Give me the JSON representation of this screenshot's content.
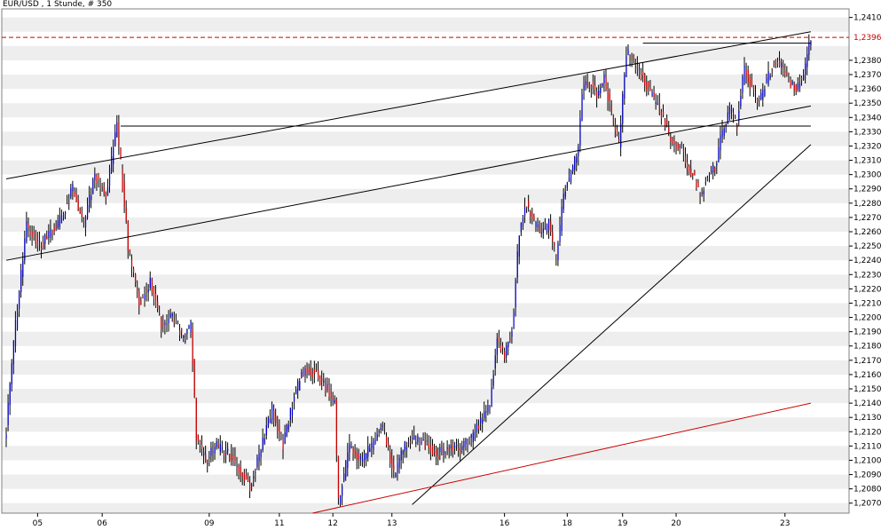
{
  "chart_data": {
    "type": "candlestick",
    "title": "EUR/USD , 1 Stunde, # 350",
    "x_tick_labels": [
      "05",
      "06",
      "09",
      "11",
      "12",
      "13",
      "16",
      "18",
      "19",
      "20",
      "23"
    ],
    "y_tick_labels": [
      "1,2410",
      "1,2380",
      "1,2370",
      "1,2360",
      "1,2350",
      "1,2340",
      "1,2330",
      "1,2320",
      "1,2310",
      "1,2300",
      "1,2290",
      "1,2280",
      "1,2270",
      "1,2260",
      "1,2250",
      "1,2240",
      "1,2230",
      "1,2220",
      "1,2210",
      "1,2200",
      "1,2190",
      "1,2180",
      "1,2170",
      "1,2160",
      "1,2150",
      "1,2140",
      "1,2130",
      "1,2120",
      "1,2110",
      "1,2100",
      "1,2090",
      "1,2080",
      "1,2070"
    ],
    "last_value_label": "1,2396",
    "ylim": [
      1.2063,
      1.2416
    ],
    "grid": "alternating horizontal bands",
    "colors": {
      "up": "#0000cc",
      "down": "#cc0000",
      "trendline": "#000000",
      "support": "#cc0000",
      "band": "#eeeeee"
    },
    "price_path": [
      [
        0,
        1.2122
      ],
      [
        5,
        1.2195
      ],
      [
        11,
        1.2265
      ],
      [
        18,
        1.225
      ],
      [
        24,
        1.2258
      ],
      [
        30,
        1.227
      ],
      [
        36,
        1.229
      ],
      [
        42,
        1.2265
      ],
      [
        48,
        1.23
      ],
      [
        54,
        1.2285
      ],
      [
        60,
        1.2335
      ],
      [
        66,
        1.225
      ],
      [
        72,
        1.221
      ],
      [
        78,
        1.2225
      ],
      [
        84,
        1.2195
      ],
      [
        90,
        1.22
      ],
      [
        96,
        1.2185
      ],
      [
        100,
        1.2195
      ],
      [
        103,
        1.2115
      ],
      [
        108,
        1.21
      ],
      [
        114,
        1.211
      ],
      [
        120,
        1.2105
      ],
      [
        126,
        1.2095
      ],
      [
        132,
        1.208
      ],
      [
        138,
        1.211
      ],
      [
        144,
        1.2135
      ],
      [
        150,
        1.211
      ],
      [
        156,
        1.2145
      ],
      [
        162,
        1.2165
      ],
      [
        168,
        1.216
      ],
      [
        174,
        1.215
      ],
      [
        178,
        1.214
      ],
      [
        180,
        1.207
      ],
      [
        186,
        1.211
      ],
      [
        192,
        1.21
      ],
      [
        198,
        1.211
      ],
      [
        204,
        1.2125
      ],
      [
        210,
        1.209
      ],
      [
        216,
        1.211
      ],
      [
        222,
        1.2115
      ],
      [
        228,
        1.211
      ],
      [
        234,
        1.2105
      ],
      [
        240,
        1.2108
      ],
      [
        246,
        1.2108
      ],
      [
        252,
        1.2115
      ],
      [
        258,
        1.213
      ],
      [
        262,
        1.214
      ],
      [
        266,
        1.2185
      ],
      [
        270,
        1.2175
      ],
      [
        274,
        1.219
      ],
      [
        278,
        1.226
      ],
      [
        282,
        1.228
      ],
      [
        286,
        1.2265
      ],
      [
        290,
        1.226
      ],
      [
        294,
        1.2265
      ],
      [
        298,
        1.224
      ],
      [
        302,
        1.2285
      ],
      [
        306,
        1.23
      ],
      [
        310,
        1.2318
      ],
      [
        312,
        1.236
      ],
      [
        316,
        1.2365
      ],
      [
        320,
        1.2355
      ],
      [
        324,
        1.237
      ],
      [
        328,
        1.234
      ],
      [
        332,
        1.232
      ],
      [
        336,
        1.2385
      ],
      [
        340,
        1.238
      ],
      [
        344,
        1.237
      ],
      [
        348,
        1.236
      ],
      [
        352,
        1.235
      ],
      [
        356,
        1.234
      ],
      [
        360,
        1.2325
      ],
      [
        364,
        1.232
      ],
      [
        368,
        1.231
      ],
      [
        372,
        1.23
      ],
      [
        376,
        1.2285
      ],
      [
        380,
        1.23
      ],
      [
        384,
        1.2305
      ],
      [
        388,
        1.233
      ],
      [
        392,
        1.2345
      ],
      [
        396,
        1.2335
      ],
      [
        400,
        1.2375
      ],
      [
        404,
        1.236
      ],
      [
        408,
        1.235
      ],
      [
        412,
        1.2365
      ],
      [
        416,
        1.238
      ],
      [
        420,
        1.2375
      ],
      [
        424,
        1.2365
      ],
      [
        428,
        1.236
      ],
      [
        432,
        1.237
      ],
      [
        436,
        1.2395
      ]
    ],
    "annotations": [
      {
        "type": "trendline",
        "color": "#000000",
        "from": [
          0,
          1.2297
        ],
        "to": [
          436,
          1.24
        ]
      },
      {
        "type": "trendline",
        "color": "#000000",
        "from": [
          0,
          1.224
        ],
        "to": [
          436,
          1.2348
        ]
      },
      {
        "type": "trendline",
        "color": "#000000",
        "from": [
          220,
          1.2069
        ],
        "to": [
          436,
          1.2321
        ]
      },
      {
        "type": "trendline",
        "color": "#cc0000",
        "from": [
          166,
          1.2063
        ],
        "to": [
          436,
          1.214
        ]
      },
      {
        "type": "hline",
        "color": "#000000",
        "y": 1.2334,
        "from_x": 62,
        "to_x": 436
      },
      {
        "type": "hline",
        "color": "#000000",
        "y": 1.2392,
        "from_x": 345,
        "to_x": 436
      },
      {
        "type": "hline",
        "color": "#cc0000",
        "style": "dashed",
        "y": 1.2396
      }
    ]
  }
}
